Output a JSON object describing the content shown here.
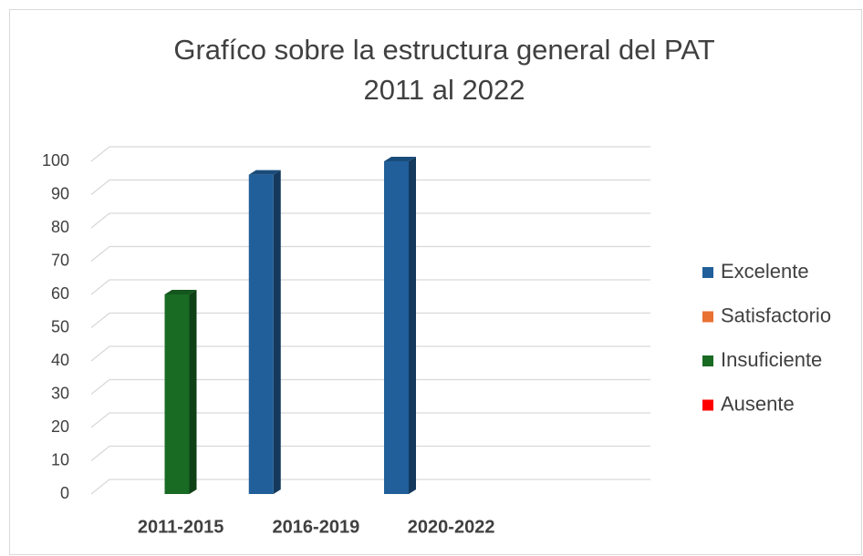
{
  "chart_data": {
    "type": "bar3d",
    "title": [
      "Grafíco sobre la estructura general del PAT",
      "2011 al 2022"
    ],
    "categories": [
      "2011-2015",
      "2016-2019",
      "2020-2022",
      null
    ],
    "series": [
      {
        "name": "Excelente",
        "color": "#215f9a",
        "values": [
          null,
          96,
          100,
          null
        ]
      },
      {
        "name": "Satisfactorio",
        "color": "#e97132",
        "values": [
          null,
          null,
          null,
          null
        ]
      },
      {
        "name": "Insuficiente",
        "color": "#196b24",
        "values": [
          60,
          null,
          null,
          null
        ]
      },
      {
        "name": "Ausente",
        "color": "#ff0000",
        "values": [
          null,
          null,
          null,
          null
        ]
      }
    ],
    "ylim": [
      0,
      100
    ],
    "yticks": [
      0,
      10,
      20,
      30,
      40,
      50,
      60,
      70,
      80,
      90,
      100
    ],
    "grid": true,
    "legend": "right"
  }
}
